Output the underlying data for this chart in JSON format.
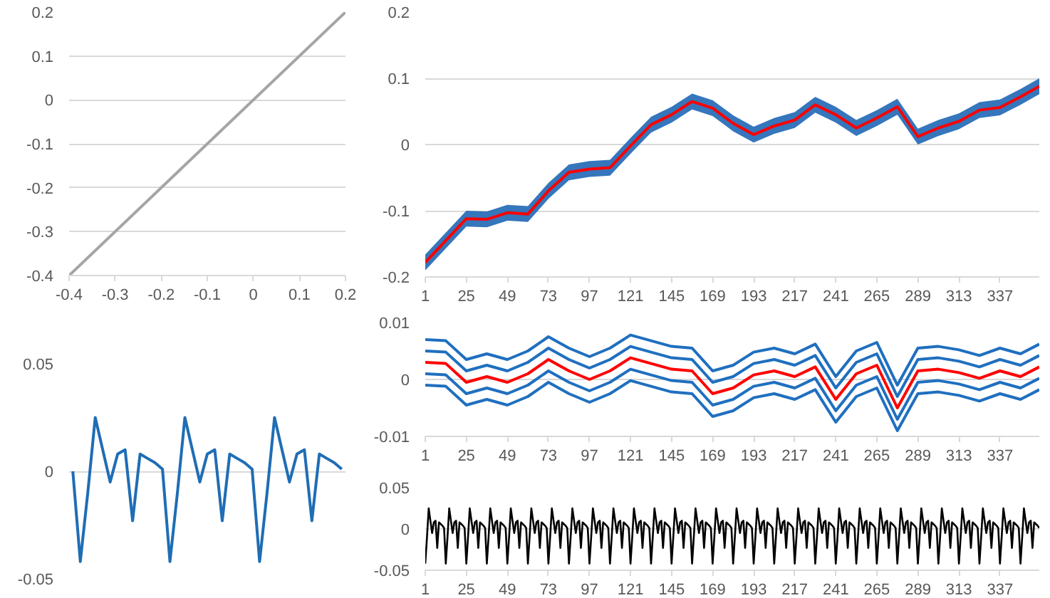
{
  "chart_data": [
    {
      "type": "line",
      "x": [
        -0.4,
        0.2
      ],
      "xlim": [
        -0.4,
        0.2
      ],
      "xticks": [
        -0.4,
        -0.3,
        -0.2,
        -0.1,
        0,
        0.1,
        0.2
      ],
      "ylim": [
        -0.4,
        0.2
      ],
      "yticks": [
        -0.4,
        -0.3,
        -0.2,
        -0.1,
        0,
        0.1,
        0.2
      ],
      "grid": "y",
      "series": [
        {
          "color": "#a5a5a5",
          "values": [
            -0.4,
            0.2
          ]
        }
      ]
    },
    {
      "type": "line",
      "categories": [
        null,
        null,
        null,
        null,
        null,
        null,
        null,
        null,
        null,
        null,
        null,
        null,
        null,
        null,
        null,
        null,
        null,
        null,
        null,
        null,
        null,
        null,
        null,
        null,
        null,
        null,
        null,
        null,
        null,
        null,
        null,
        null,
        null,
        null,
        null,
        null,
        null
      ],
      "ylim": [
        -0.05,
        0.05
      ],
      "yticks": [
        -0.05,
        0,
        0.05
      ],
      "grid": "y",
      "tick_labels": "y",
      "series": [
        {
          "color": "#1f6db5",
          "values": [
            0,
            -0.042,
            -0.01,
            0.025,
            0.01,
            -0.005,
            0.008,
            0.01,
            -0.023,
            0.008,
            0.006,
            0.004,
            0.001,
            -0.042,
            -0.01,
            0.025,
            0.01,
            -0.005,
            0.008,
            0.01,
            -0.023,
            0.008,
            0.006,
            0.004,
            0.001,
            -0.042,
            -0.01,
            0.025,
            0.01,
            -0.005,
            0.008,
            0.01,
            -0.023,
            0.008,
            0.006,
            0.004,
            0.001
          ]
        }
      ]
    },
    {
      "type": "line",
      "x": [
        1,
        13,
        25,
        37,
        49,
        61,
        73,
        85,
        97,
        109,
        121,
        133,
        145,
        157,
        169,
        181,
        193,
        205,
        217,
        229,
        241,
        253,
        265,
        277,
        289,
        301,
        313,
        325,
        337,
        349,
        360
      ],
      "xlim": [
        1,
        360
      ],
      "xticks": [
        1,
        25,
        49,
        73,
        97,
        121,
        145,
        169,
        193,
        217,
        241,
        265,
        289,
        313,
        337
      ],
      "ylim": [
        -0.2,
        0.2
      ],
      "yticks": [
        -0.2,
        -0.1,
        0,
        0.1,
        0.2
      ],
      "grid": "y",
      "series": [
        {
          "color": "#ff0000",
          "values": [
            -0.178,
            -0.145,
            -0.112,
            -0.113,
            -0.103,
            -0.105,
            -0.07,
            -0.042,
            -0.037,
            -0.035,
            -0.002,
            0.03,
            0.045,
            0.065,
            0.055,
            0.032,
            0.015,
            0.028,
            0.037,
            0.06,
            0.045,
            0.025,
            0.04,
            0.057,
            0.012,
            0.025,
            0.035,
            0.052,
            0.056,
            0.072,
            0.088
          ],
          "lower": [
            -0.19,
            -0.157,
            -0.124,
            -0.125,
            -0.115,
            -0.117,
            -0.082,
            -0.054,
            -0.049,
            -0.047,
            -0.014,
            0.018,
            0.033,
            0.053,
            0.043,
            0.02,
            0.003,
            0.016,
            0.025,
            0.048,
            0.033,
            0.013,
            0.028,
            0.045,
            0.0,
            0.013,
            0.023,
            0.04,
            0.044,
            0.06,
            0.076
          ],
          "upper": [
            -0.166,
            -0.133,
            -0.1,
            -0.101,
            -0.091,
            -0.093,
            -0.058,
            -0.03,
            -0.025,
            -0.023,
            0.01,
            0.042,
            0.057,
            0.077,
            0.067,
            0.044,
            0.027,
            0.04,
            0.049,
            0.072,
            0.057,
            0.037,
            0.052,
            0.069,
            0.024,
            0.037,
            0.047,
            0.064,
            0.068,
            0.084,
            0.1
          ]
        }
      ]
    },
    {
      "type": "line",
      "x": [
        1,
        13,
        25,
        37,
        49,
        61,
        73,
        85,
        97,
        109,
        121,
        133,
        145,
        157,
        169,
        181,
        193,
        205,
        217,
        229,
        241,
        253,
        265,
        277,
        289,
        301,
        313,
        325,
        337,
        349,
        360
      ],
      "xlim": [
        1,
        360
      ],
      "xticks": [
        1,
        25,
        49,
        73,
        97,
        121,
        145,
        169,
        193,
        217,
        241,
        265,
        289,
        313,
        337
      ],
      "ylim": [
        -0.01,
        0.01
      ],
      "yticks": [
        -0.01,
        0,
        0.01
      ],
      "grid": "y",
      "series": [
        {
          "color": "#1f6fbf",
          "values": [
            0.007,
            0.0068,
            0.0035,
            0.0045,
            0.0035,
            0.005,
            0.0075,
            0.0055,
            0.004,
            0.0055,
            0.0078,
            0.0068,
            0.0058,
            0.0055,
            0.0015,
            0.0025,
            0.0048,
            0.0055,
            0.0045,
            0.0062,
            0.0005,
            0.005,
            0.0065,
            -0.001,
            0.0055,
            0.0058,
            0.0052,
            0.0042,
            0.0055,
            0.0045,
            0.0062
          ]
        },
        {
          "color": "#1f6fbf",
          "values": [
            0.005,
            0.0048,
            0.0015,
            0.0025,
            0.0015,
            0.003,
            0.0055,
            0.0035,
            0.002,
            0.0035,
            0.0058,
            0.0048,
            0.0038,
            0.0035,
            -0.0005,
            0.0005,
            0.0028,
            0.0035,
            0.0025,
            0.0042,
            -0.0015,
            0.003,
            0.0045,
            -0.003,
            0.0035,
            0.0038,
            0.0032,
            0.0022,
            0.0035,
            0.0025,
            0.0042
          ]
        },
        {
          "color": "#1f6fbf",
          "values": [
            0.001,
            0.0008,
            -0.0025,
            -0.0015,
            -0.0025,
            -0.001,
            0.0015,
            -0.0005,
            -0.002,
            -0.0005,
            0.0018,
            0.0008,
            -0.0002,
            -0.0005,
            -0.0045,
            -0.0035,
            -0.0012,
            -0.0005,
            -0.0015,
            0.0002,
            -0.0055,
            -0.001,
            0.0005,
            -0.007,
            -0.0005,
            -0.0002,
            -0.0008,
            -0.0018,
            -0.0005,
            -0.0015,
            0.0002
          ]
        },
        {
          "color": "#1f6fbf",
          "values": [
            -0.001,
            -0.0012,
            -0.0045,
            -0.0035,
            -0.0045,
            -0.003,
            -0.0005,
            -0.0025,
            -0.004,
            -0.0025,
            -0.0002,
            -0.0012,
            -0.0022,
            -0.0025,
            -0.0065,
            -0.0055,
            -0.0032,
            -0.0025,
            -0.0035,
            -0.0018,
            -0.0075,
            -0.003,
            -0.0015,
            -0.009,
            -0.0025,
            -0.0022,
            -0.0028,
            -0.0038,
            -0.0025,
            -0.0035,
            -0.0018
          ]
        },
        {
          "color": "#ff0000",
          "values": [
            0.003,
            0.0028,
            -0.0005,
            0.0005,
            -0.0005,
            0.001,
            0.0035,
            0.0015,
            0.0,
            0.0015,
            0.0038,
            0.0028,
            0.0018,
            0.0015,
            -0.0025,
            -0.0015,
            0.0008,
            0.0015,
            0.0005,
            0.0022,
            -0.0035,
            0.001,
            0.0025,
            -0.005,
            0.0015,
            0.0018,
            0.0012,
            0.0002,
            0.0015,
            0.0005,
            0.0022
          ]
        }
      ]
    },
    {
      "type": "line",
      "x": [
        1,
        2,
        3,
        4,
        5,
        6,
        7,
        8,
        9,
        10,
        11,
        12,
        13,
        14,
        15,
        16,
        17,
        18,
        19,
        20,
        21,
        22,
        23,
        24,
        25,
        26,
        27,
        28,
        29,
        30,
        31,
        32,
        33,
        34,
        35,
        36,
        37,
        38,
        39,
        40,
        41,
        42,
        43,
        44,
        45,
        46,
        47,
        48,
        49,
        50,
        51,
        52,
        53,
        54,
        55,
        56,
        57,
        58,
        59,
        60,
        61,
        62,
        63,
        64,
        65,
        66,
        67,
        68,
        69,
        70,
        71,
        72,
        73,
        74,
        75,
        76,
        77,
        78,
        79,
        80,
        81,
        82,
        83,
        84,
        85,
        86,
        87,
        88,
        89,
        90,
        91,
        92,
        93,
        94,
        95,
        96,
        97,
        98,
        99,
        100,
        101,
        102,
        103,
        104,
        105,
        106,
        107,
        108,
        109,
        110,
        111,
        112,
        113,
        114,
        115,
        116,
        117,
        118,
        119,
        120,
        121,
        122,
        123,
        124,
        125,
        126,
        127,
        128,
        129,
        130,
        131,
        132,
        133,
        134,
        135,
        136,
        137,
        138,
        139,
        140,
        141,
        142,
        143,
        144,
        145,
        146,
        147,
        148,
        149,
        150,
        151,
        152,
        153,
        154,
        155,
        156,
        157,
        158,
        159,
        160,
        161,
        162,
        163,
        164,
        165,
        166,
        167,
        168,
        169,
        170,
        171,
        172,
        173,
        174,
        175,
        176,
        177,
        178,
        179,
        180,
        181,
        182,
        183,
        184,
        185,
        186,
        187,
        188,
        189,
        190,
        191,
        192,
        193,
        194,
        195,
        196,
        197,
        198,
        199,
        200,
        201,
        202,
        203,
        204,
        205,
        206,
        207,
        208,
        209,
        210,
        211,
        212,
        213,
        214,
        215,
        216,
        217,
        218,
        219,
        220,
        221,
        222,
        223,
        224,
        225,
        226,
        227,
        228,
        229,
        230,
        231,
        232,
        233,
        234,
        235,
        236,
        237,
        238,
        239,
        240,
        241,
        242,
        243,
        244,
        245,
        246,
        247,
        248,
        249,
        250,
        251,
        252,
        253,
        254,
        255,
        256,
        257,
        258,
        259,
        260,
        261,
        262,
        263,
        264,
        265,
        266,
        267,
        268,
        269,
        270,
        271,
        272,
        273,
        274,
        275,
        276,
        277,
        278,
        279,
        280,
        281,
        282,
        283,
        284,
        285,
        286,
        287,
        288,
        289,
        290,
        291,
        292,
        293,
        294,
        295,
        296,
        297,
        298,
        299,
        300,
        301,
        302,
        303,
        304,
        305,
        306,
        307,
        308,
        309,
        310,
        311,
        312,
        313,
        314,
        315,
        316,
        317,
        318,
        319,
        320,
        321,
        322,
        323,
        324,
        325,
        326,
        327,
        328,
        329,
        330,
        331,
        332,
        333,
        334,
        335,
        336,
        337,
        338,
        339,
        340,
        341,
        342,
        343,
        344,
        345,
        346,
        347,
        348,
        349,
        350,
        351,
        352,
        353,
        354,
        355,
        356,
        357,
        358,
        359,
        360
      ],
      "xlim": [
        1,
        360
      ],
      "xticks": [
        1,
        25,
        49,
        73,
        97,
        121,
        145,
        169,
        193,
        217,
        241,
        265,
        289,
        313,
        337
      ],
      "ylim": [
        -0.05,
        0.05
      ],
      "yticks": [
        -0.05,
        0,
        0.05
      ],
      "grid": "y",
      "series": [
        {
          "color": "#000000",
          "values": [
            -0.042,
            -0.01,
            0.025,
            0.01,
            -0.005,
            0.008,
            0.01,
            -0.023,
            0.008,
            0.006,
            0.004,
            0.001,
            -0.042,
            -0.01,
            0.025,
            0.01,
            -0.005,
            0.008,
            0.01,
            -0.023,
            0.008,
            0.006,
            0.004,
            0.001,
            -0.042,
            -0.01,
            0.025,
            0.01,
            -0.005,
            0.008,
            0.01,
            -0.023,
            0.008,
            0.006,
            0.004,
            0.001,
            -0.042,
            -0.01,
            0.025,
            0.01,
            -0.005,
            0.008,
            0.01,
            -0.023,
            0.008,
            0.006,
            0.004,
            0.001,
            -0.042,
            -0.01,
            0.025,
            0.01,
            -0.005,
            0.008,
            0.01,
            -0.023,
            0.008,
            0.006,
            0.004,
            0.001,
            -0.042,
            -0.01,
            0.025,
            0.01,
            -0.005,
            0.008,
            0.01,
            -0.023,
            0.008,
            0.006,
            0.004,
            0.001,
            -0.042,
            -0.01,
            0.025,
            0.01,
            -0.005,
            0.008,
            0.01,
            -0.023,
            0.008,
            0.006,
            0.004,
            0.001,
            -0.042,
            -0.01,
            0.025,
            0.01,
            -0.005,
            0.008,
            0.01,
            -0.023,
            0.008,
            0.006,
            0.004,
            0.001,
            -0.042,
            -0.01,
            0.025,
            0.01,
            -0.005,
            0.008,
            0.01,
            -0.023,
            0.008,
            0.006,
            0.004,
            0.001,
            -0.042,
            -0.01,
            0.025,
            0.01,
            -0.005,
            0.008,
            0.01,
            -0.023,
            0.008,
            0.006,
            0.004,
            0.001,
            -0.042,
            -0.01,
            0.025,
            0.01,
            -0.005,
            0.008,
            0.01,
            -0.023,
            0.008,
            0.006,
            0.004,
            0.001,
            -0.042,
            -0.01,
            0.025,
            0.01,
            -0.005,
            0.008,
            0.01,
            -0.023,
            0.008,
            0.006,
            0.004,
            0.001,
            -0.042,
            -0.01,
            0.025,
            0.01,
            -0.005,
            0.008,
            0.01,
            -0.023,
            0.008,
            0.006,
            0.004,
            0.001,
            -0.042,
            -0.01,
            0.025,
            0.01,
            -0.005,
            0.008,
            0.01,
            -0.023,
            0.008,
            0.006,
            0.004,
            0.001,
            -0.042,
            -0.01,
            0.025,
            0.01,
            -0.005,
            0.008,
            0.01,
            -0.023,
            0.008,
            0.006,
            0.004,
            0.001,
            -0.042,
            -0.01,
            0.025,
            0.01,
            -0.005,
            0.008,
            0.01,
            -0.023,
            0.008,
            0.006,
            0.004,
            0.001,
            -0.042,
            -0.01,
            0.025,
            0.01,
            -0.005,
            0.008,
            0.01,
            -0.023,
            0.008,
            0.006,
            0.004,
            0.001,
            -0.042,
            -0.01,
            0.025,
            0.01,
            -0.005,
            0.008,
            0.01,
            -0.023,
            0.008,
            0.006,
            0.004,
            0.001,
            -0.042,
            -0.01,
            0.025,
            0.01,
            -0.005,
            0.008,
            0.01,
            -0.023,
            0.008,
            0.006,
            0.004,
            0.001,
            -0.042,
            -0.01,
            0.025,
            0.01,
            -0.005,
            0.008,
            0.01,
            -0.023,
            0.008,
            0.006,
            0.004,
            0.001,
            -0.042,
            -0.01,
            0.025,
            0.01,
            -0.005,
            0.008,
            0.01,
            -0.023,
            0.008,
            0.006,
            0.004,
            0.001,
            -0.042,
            -0.01,
            0.025,
            0.01,
            -0.005,
            0.008,
            0.01,
            -0.023,
            0.008,
            0.006,
            0.004,
            0.001,
            -0.042,
            -0.01,
            0.025,
            0.01,
            -0.005,
            0.008,
            0.01,
            -0.023,
            0.008,
            0.006,
            0.004,
            0.001,
            -0.042,
            -0.01,
            0.025,
            0.01,
            -0.005,
            0.008,
            0.01,
            -0.023,
            0.008,
            0.006,
            0.004,
            0.001,
            -0.042,
            -0.01,
            0.025,
            0.01,
            -0.005,
            0.008,
            0.01,
            -0.023,
            0.008,
            0.006,
            0.004,
            0.001,
            -0.042,
            -0.01,
            0.025,
            0.01,
            -0.005,
            0.008,
            0.01,
            -0.023,
            0.008,
            0.006,
            0.004,
            0.001,
            -0.042,
            -0.01,
            0.025,
            0.01,
            -0.005,
            0.008,
            0.01,
            -0.023,
            0.008,
            0.006,
            0.004,
            0.001,
            -0.042,
            -0.01,
            0.025,
            0.01,
            -0.005,
            0.008,
            0.01,
            -0.023,
            0.008,
            0.006,
            0.004,
            0.001,
            -0.042,
            -0.01,
            0.025,
            0.01,
            -0.005,
            0.008,
            0.01,
            -0.023,
            0.008,
            0.006,
            0.004,
            0.001,
            -0.042,
            -0.01,
            0.025,
            0.01,
            -0.005,
            0.008,
            0.01,
            -0.023,
            0.008,
            0.006,
            0.004,
            0.001
          ]
        }
      ]
    }
  ]
}
